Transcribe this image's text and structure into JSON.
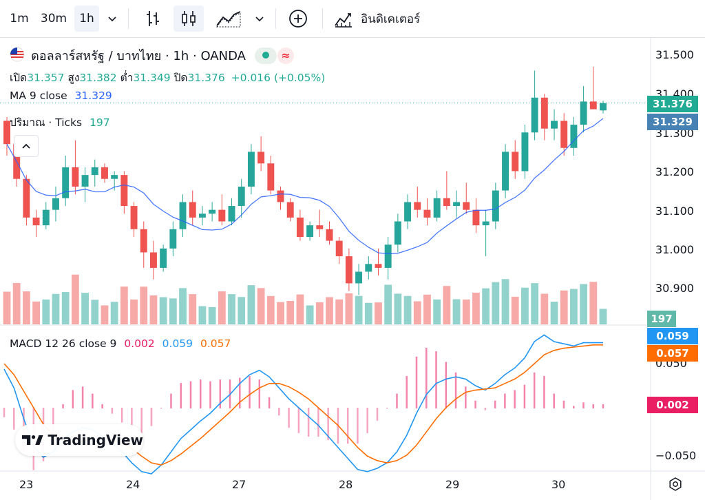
{
  "toolbar": {
    "intervals": [
      "1m",
      "30m",
      "1h"
    ],
    "active_interval": "1h",
    "indicators_label": "อินดิเคเตอร์"
  },
  "legend": {
    "symbol_title": "ดอลลาร์สหรัฐ / บาทไทย · 1h · OANDA",
    "open_label": "เปิด",
    "open": "31.357",
    "high_label": "สูง",
    "high": "31.382",
    "low_label": "ต่ำ",
    "low": "31.349",
    "close_label": "ปิด",
    "close": "31.376",
    "change": "+0.016 (+0.05%)",
    "ma_label": "MA 9 close",
    "ma_value": "31.329",
    "volume_label": "ปริมาณ · Ticks",
    "volume_value": "197",
    "macd_label": "MACD 12 26 close 9",
    "macd_hist": "0.002",
    "macd_line": "0.059",
    "macd_signal": "0.057"
  },
  "badges": {
    "price": "31.376",
    "ma": "31.329",
    "volume": "197",
    "macd": "0.059",
    "signal": "0.057",
    "hist": "0.002"
  },
  "colors": {
    "up": "#26a69a",
    "down": "#ef5350",
    "ma": "#2962ff",
    "macd": "#2196f3",
    "signal": "#ff6d00",
    "hist": "#e91e63",
    "price_badge": "#22ab94",
    "ma_badge": "#4682b4"
  },
  "price_axis": [
    "31.500",
    "31.400",
    "31.300",
    "31.200",
    "31.100",
    "31.000",
    "30.900"
  ],
  "macd_axis": [
    "0.050",
    "−0.050"
  ],
  "x_axis": [
    "23",
    "24",
    "27",
    "28",
    "29",
    "30"
  ],
  "logo_text": "TradingView",
  "chart_data": {
    "type": "candlestick",
    "panels": [
      "price",
      "volume",
      "macd"
    ],
    "price_range": [
      30.86,
      31.52
    ],
    "ohlc_sample": [
      [
        31.33,
        31.34,
        31.24,
        31.27
      ],
      [
        31.27,
        31.29,
        31.16,
        31.18
      ],
      [
        31.18,
        31.19,
        31.06,
        31.08
      ],
      [
        31.08,
        31.1,
        31.03,
        31.06
      ],
      [
        31.06,
        31.12,
        31.05,
        31.1
      ],
      [
        31.1,
        31.16,
        31.07,
        31.13
      ],
      [
        31.13,
        31.24,
        31.11,
        31.21
      ],
      [
        31.21,
        31.28,
        31.14,
        31.16
      ],
      [
        31.16,
        31.21,
        31.12,
        31.19
      ],
      [
        31.19,
        31.23,
        31.16,
        31.21
      ],
      [
        31.21,
        31.22,
        31.17,
        31.18
      ],
      [
        31.18,
        31.2,
        31.15,
        31.19
      ],
      [
        31.19,
        31.2,
        31.09,
        31.11
      ],
      [
        31.11,
        31.12,
        31.03,
        31.05
      ],
      [
        31.05,
        31.07,
        30.95,
        30.99
      ],
      [
        30.99,
        31.02,
        30.92,
        30.95
      ],
      [
        30.95,
        31.01,
        30.94,
        31.0
      ],
      [
        31.0,
        31.07,
        30.98,
        31.05
      ],
      [
        31.05,
        31.14,
        31.03,
        31.12
      ],
      [
        31.12,
        31.15,
        31.06,
        31.08
      ],
      [
        31.08,
        31.11,
        31.06,
        31.09
      ],
      [
        31.09,
        31.12,
        31.07,
        31.1
      ],
      [
        31.1,
        31.14,
        31.06,
        31.07
      ],
      [
        31.07,
        31.13,
        31.06,
        31.11
      ],
      [
        31.11,
        31.18,
        31.08,
        31.16
      ],
      [
        31.16,
        31.27,
        31.14,
        31.25
      ],
      [
        31.25,
        31.29,
        31.2,
        31.22
      ],
      [
        31.22,
        31.24,
        31.14,
        31.15
      ],
      [
        31.15,
        31.16,
        31.1,
        31.12
      ],
      [
        31.12,
        31.13,
        31.07,
        31.08
      ],
      [
        31.08,
        31.1,
        31.02,
        31.03
      ],
      [
        31.03,
        31.07,
        31.02,
        31.06
      ],
      [
        31.06,
        31.1,
        31.03,
        31.05
      ],
      [
        31.05,
        31.07,
        31.01,
        31.02
      ],
      [
        31.02,
        31.03,
        30.96,
        30.98
      ],
      [
        30.98,
        31.0,
        30.89,
        30.91
      ],
      [
        30.91,
        30.96,
        30.88,
        30.94
      ],
      [
        30.94,
        30.98,
        30.92,
        30.96
      ],
      [
        30.96,
        31.0,
        30.93,
        30.95
      ],
      [
        30.95,
        31.03,
        30.92,
        31.01
      ],
      [
        31.01,
        31.09,
        30.99,
        31.07
      ],
      [
        31.07,
        31.14,
        31.05,
        31.12
      ],
      [
        31.12,
        31.16,
        31.08,
        31.1
      ],
      [
        31.1,
        31.13,
        31.06,
        31.08
      ],
      [
        31.08,
        31.15,
        31.07,
        31.13
      ],
      [
        31.13,
        31.2,
        31.1,
        31.11
      ],
      [
        31.11,
        31.15,
        31.08,
        31.12
      ],
      [
        31.12,
        31.17,
        31.09,
        31.1
      ],
      [
        31.1,
        31.13,
        31.04,
        31.06
      ],
      [
        31.06,
        31.1,
        30.98,
        31.07
      ],
      [
        31.07,
        31.17,
        31.05,
        31.15
      ],
      [
        31.15,
        31.27,
        31.13,
        31.25
      ],
      [
        31.25,
        31.28,
        31.18,
        31.2
      ],
      [
        31.2,
        31.32,
        31.18,
        31.3
      ],
      [
        31.3,
        31.46,
        31.28,
        31.39
      ],
      [
        31.39,
        31.4,
        31.28,
        31.31
      ],
      [
        31.31,
        31.36,
        31.28,
        31.33
      ],
      [
        31.33,
        31.35,
        31.24,
        31.26
      ],
      [
        31.26,
        31.34,
        31.24,
        31.32
      ],
      [
        31.32,
        31.42,
        31.3,
        31.38
      ],
      [
        31.38,
        31.47,
        31.36,
        31.36
      ],
      [
        31.357,
        31.382,
        31.349,
        31.376
      ]
    ],
    "ma_last": 31.329,
    "volume_last": 197,
    "macd_range": [
      -0.065,
      0.07
    ],
    "macd_last": 0.059,
    "signal_last": 0.057,
    "hist_last": 0.002,
    "macd_series": [
      0.035,
      0.018,
      -0.01,
      -0.035,
      -0.045,
      -0.04,
      -0.028,
      -0.022,
      -0.018,
      -0.02,
      -0.026,
      -0.032,
      -0.04,
      -0.05,
      -0.058,
      -0.06,
      -0.052,
      -0.04,
      -0.028,
      -0.02,
      -0.012,
      -0.005,
      0.004,
      0.012,
      0.022,
      0.03,
      0.034,
      0.028,
      0.018,
      0.008,
      0.0,
      -0.008,
      -0.016,
      -0.026,
      -0.036,
      -0.046,
      -0.056,
      -0.058,
      -0.055,
      -0.05,
      -0.04,
      -0.025,
      -0.005,
      0.012,
      0.022,
      0.026,
      0.028,
      0.026,
      0.02,
      0.016,
      0.022,
      0.03,
      0.036,
      0.045,
      0.06,
      0.066,
      0.06,
      0.058,
      0.056,
      0.059,
      0.059,
      0.059
    ],
    "signal_series": [
      0.04,
      0.03,
      0.015,
      0.0,
      -0.015,
      -0.025,
      -0.03,
      -0.032,
      -0.03,
      -0.028,
      -0.028,
      -0.029,
      -0.032,
      -0.037,
      -0.044,
      -0.05,
      -0.052,
      -0.048,
      -0.042,
      -0.035,
      -0.028,
      -0.02,
      -0.012,
      -0.004,
      0.005,
      0.012,
      0.018,
      0.022,
      0.022,
      0.019,
      0.014,
      0.008,
      0.0,
      -0.008,
      -0.016,
      -0.026,
      -0.036,
      -0.044,
      -0.048,
      -0.05,
      -0.048,
      -0.043,
      -0.034,
      -0.022,
      -0.01,
      0.0,
      0.008,
      0.014,
      0.016,
      0.017,
      0.018,
      0.022,
      0.026,
      0.032,
      0.04,
      0.048,
      0.052,
      0.054,
      0.055,
      0.056,
      0.057,
      0.057
    ]
  }
}
